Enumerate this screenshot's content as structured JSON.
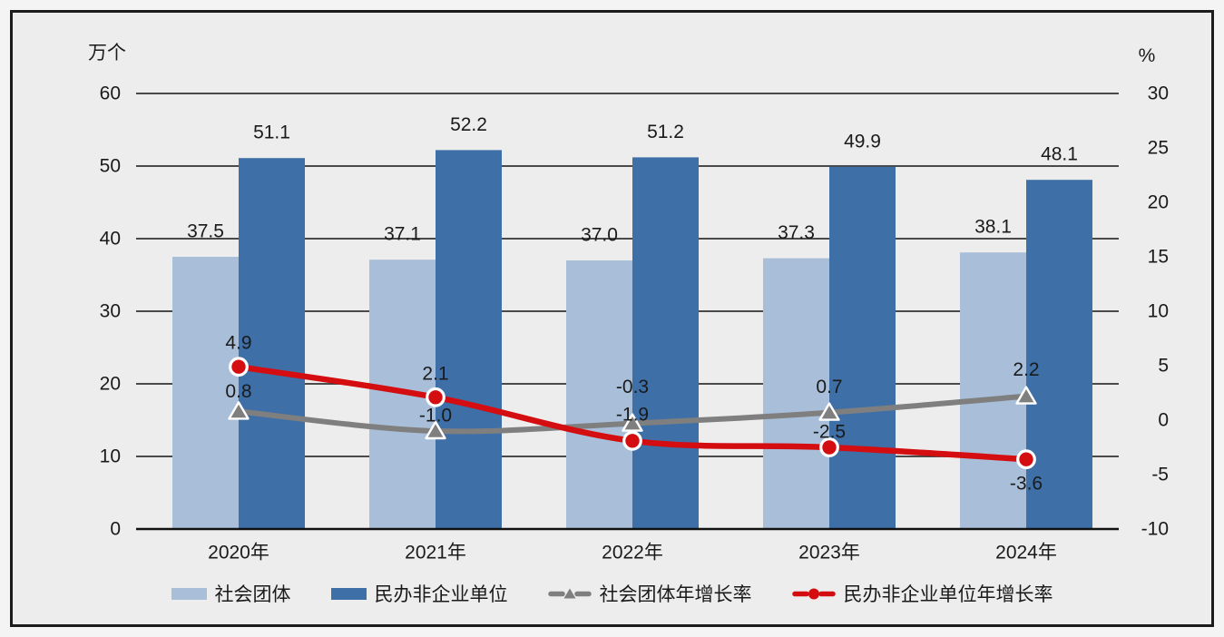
{
  "chart_data": {
    "type": "bar",
    "subtype": "grouped-bars-with-lines-combo",
    "categories": [
      "2020年",
      "2021年",
      "2022年",
      "2023年",
      "2024年"
    ],
    "left_axis": {
      "title": "万个",
      "min": 0,
      "max": 60,
      "step": 10,
      "ticks": [
        0,
        10,
        20,
        30,
        40,
        50,
        60
      ]
    },
    "right_axis": {
      "title": "%",
      "min": -10,
      "max": 30,
      "step": 5,
      "ticks": [
        30,
        25,
        20,
        15,
        10,
        5,
        0,
        -5,
        -10
      ]
    },
    "grid": true,
    "legend_position": "bottom",
    "series": [
      {
        "name": "社会团体",
        "kind": "bar",
        "color": "#a9bfd9",
        "values": [
          37.5,
          37.1,
          37.0,
          37.3,
          38.1
        ]
      },
      {
        "name": "民办非企业单位",
        "kind": "bar",
        "color": "#3e6fa7",
        "values": [
          51.1,
          52.2,
          51.2,
          49.9,
          48.1
        ]
      },
      {
        "name": "社会团体年增长率",
        "kind": "line",
        "marker": "triangle",
        "color": "#7f7f7f",
        "values": [
          0.8,
          -1.0,
          -0.3,
          0.7,
          2.2
        ]
      },
      {
        "name": "民办非企业单位年增长率",
        "kind": "line",
        "marker": "circle",
        "color": "#d40d10",
        "values": [
          4.9,
          2.1,
          -1.9,
          -2.5,
          -3.6
        ]
      }
    ],
    "colors": {
      "background": "#ededed",
      "frame_border": "#1c1c1c",
      "gridline": "#333333",
      "baseline": "#111111",
      "bar_light": "#a9bfd9",
      "bar_dark": "#3e6fa7",
      "line_gray": "#7f7f7f",
      "line_red": "#d40d10",
      "text": "#1a1a1a"
    }
  }
}
